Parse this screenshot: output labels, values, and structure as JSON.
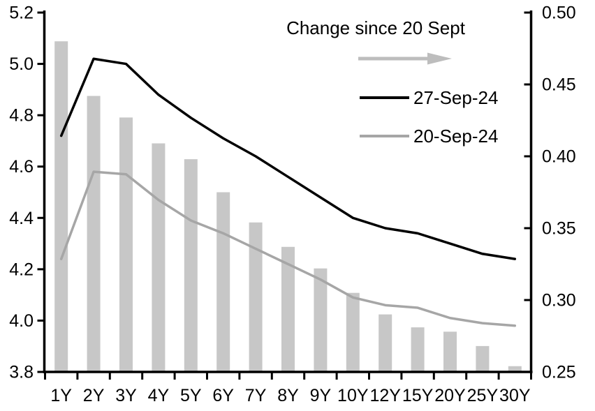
{
  "chart_data": {
    "type": "bar",
    "subtype": "combo-bar-line",
    "title": "",
    "xlabel": "",
    "ylabel": "",
    "categories": [
      "1Y",
      "2Y",
      "3Y",
      "4Y",
      "5Y",
      "6Y",
      "7Y",
      "8Y",
      "9Y",
      "10Y",
      "12Y",
      "15Y",
      "20Y",
      "25Y",
      "30Y"
    ],
    "series": [
      {
        "name": "Change since 20 Sept",
        "type": "bar",
        "axis": "right",
        "color": "#C7C7C7",
        "values": [
          0.48,
          0.442,
          0.427,
          0.409,
          0.398,
          0.375,
          0.354,
          0.337,
          0.322,
          0.305,
          0.29,
          0.281,
          0.278,
          0.268,
          0.254
        ]
      },
      {
        "name": "27-Sep-24",
        "type": "line",
        "axis": "left",
        "color": "#000000",
        "values": [
          4.72,
          5.02,
          5.0,
          4.88,
          4.79,
          4.71,
          4.64,
          4.56,
          4.48,
          4.4,
          4.36,
          4.34,
          4.3,
          4.26,
          4.24
        ]
      },
      {
        "name": "20-Sep-24",
        "type": "line",
        "axis": "left",
        "color": "#A6A6A6",
        "values": [
          4.24,
          4.58,
          4.57,
          4.47,
          4.39,
          4.34,
          4.28,
          4.22,
          4.16,
          4.09,
          4.06,
          4.05,
          4.01,
          3.99,
          3.98
        ]
      }
    ],
    "left_axis": {
      "min": 3.8,
      "max": 5.2,
      "tick_labels": [
        "5.2",
        "5.0",
        "4.8",
        "4.6",
        "4.4",
        "4.2",
        "4.0",
        "3.8"
      ]
    },
    "right_axis": {
      "min": 0.25,
      "max": 0.5,
      "tick_labels": [
        "0.50",
        "0.45",
        "0.40",
        "0.35",
        "0.30",
        "0.25"
      ]
    },
    "grid": false,
    "legend": {
      "position": "top-right-inside",
      "bar_entry_label": "Change since 20 Sept",
      "arrow_icon": "right-arrow-icon",
      "arrow_color": "#BDBDBD",
      "line_entries": [
        {
          "label": "27-Sep-24",
          "color": "#000000"
        },
        {
          "label": "20-Sep-24",
          "color": "#A6A6A6"
        }
      ]
    }
  }
}
